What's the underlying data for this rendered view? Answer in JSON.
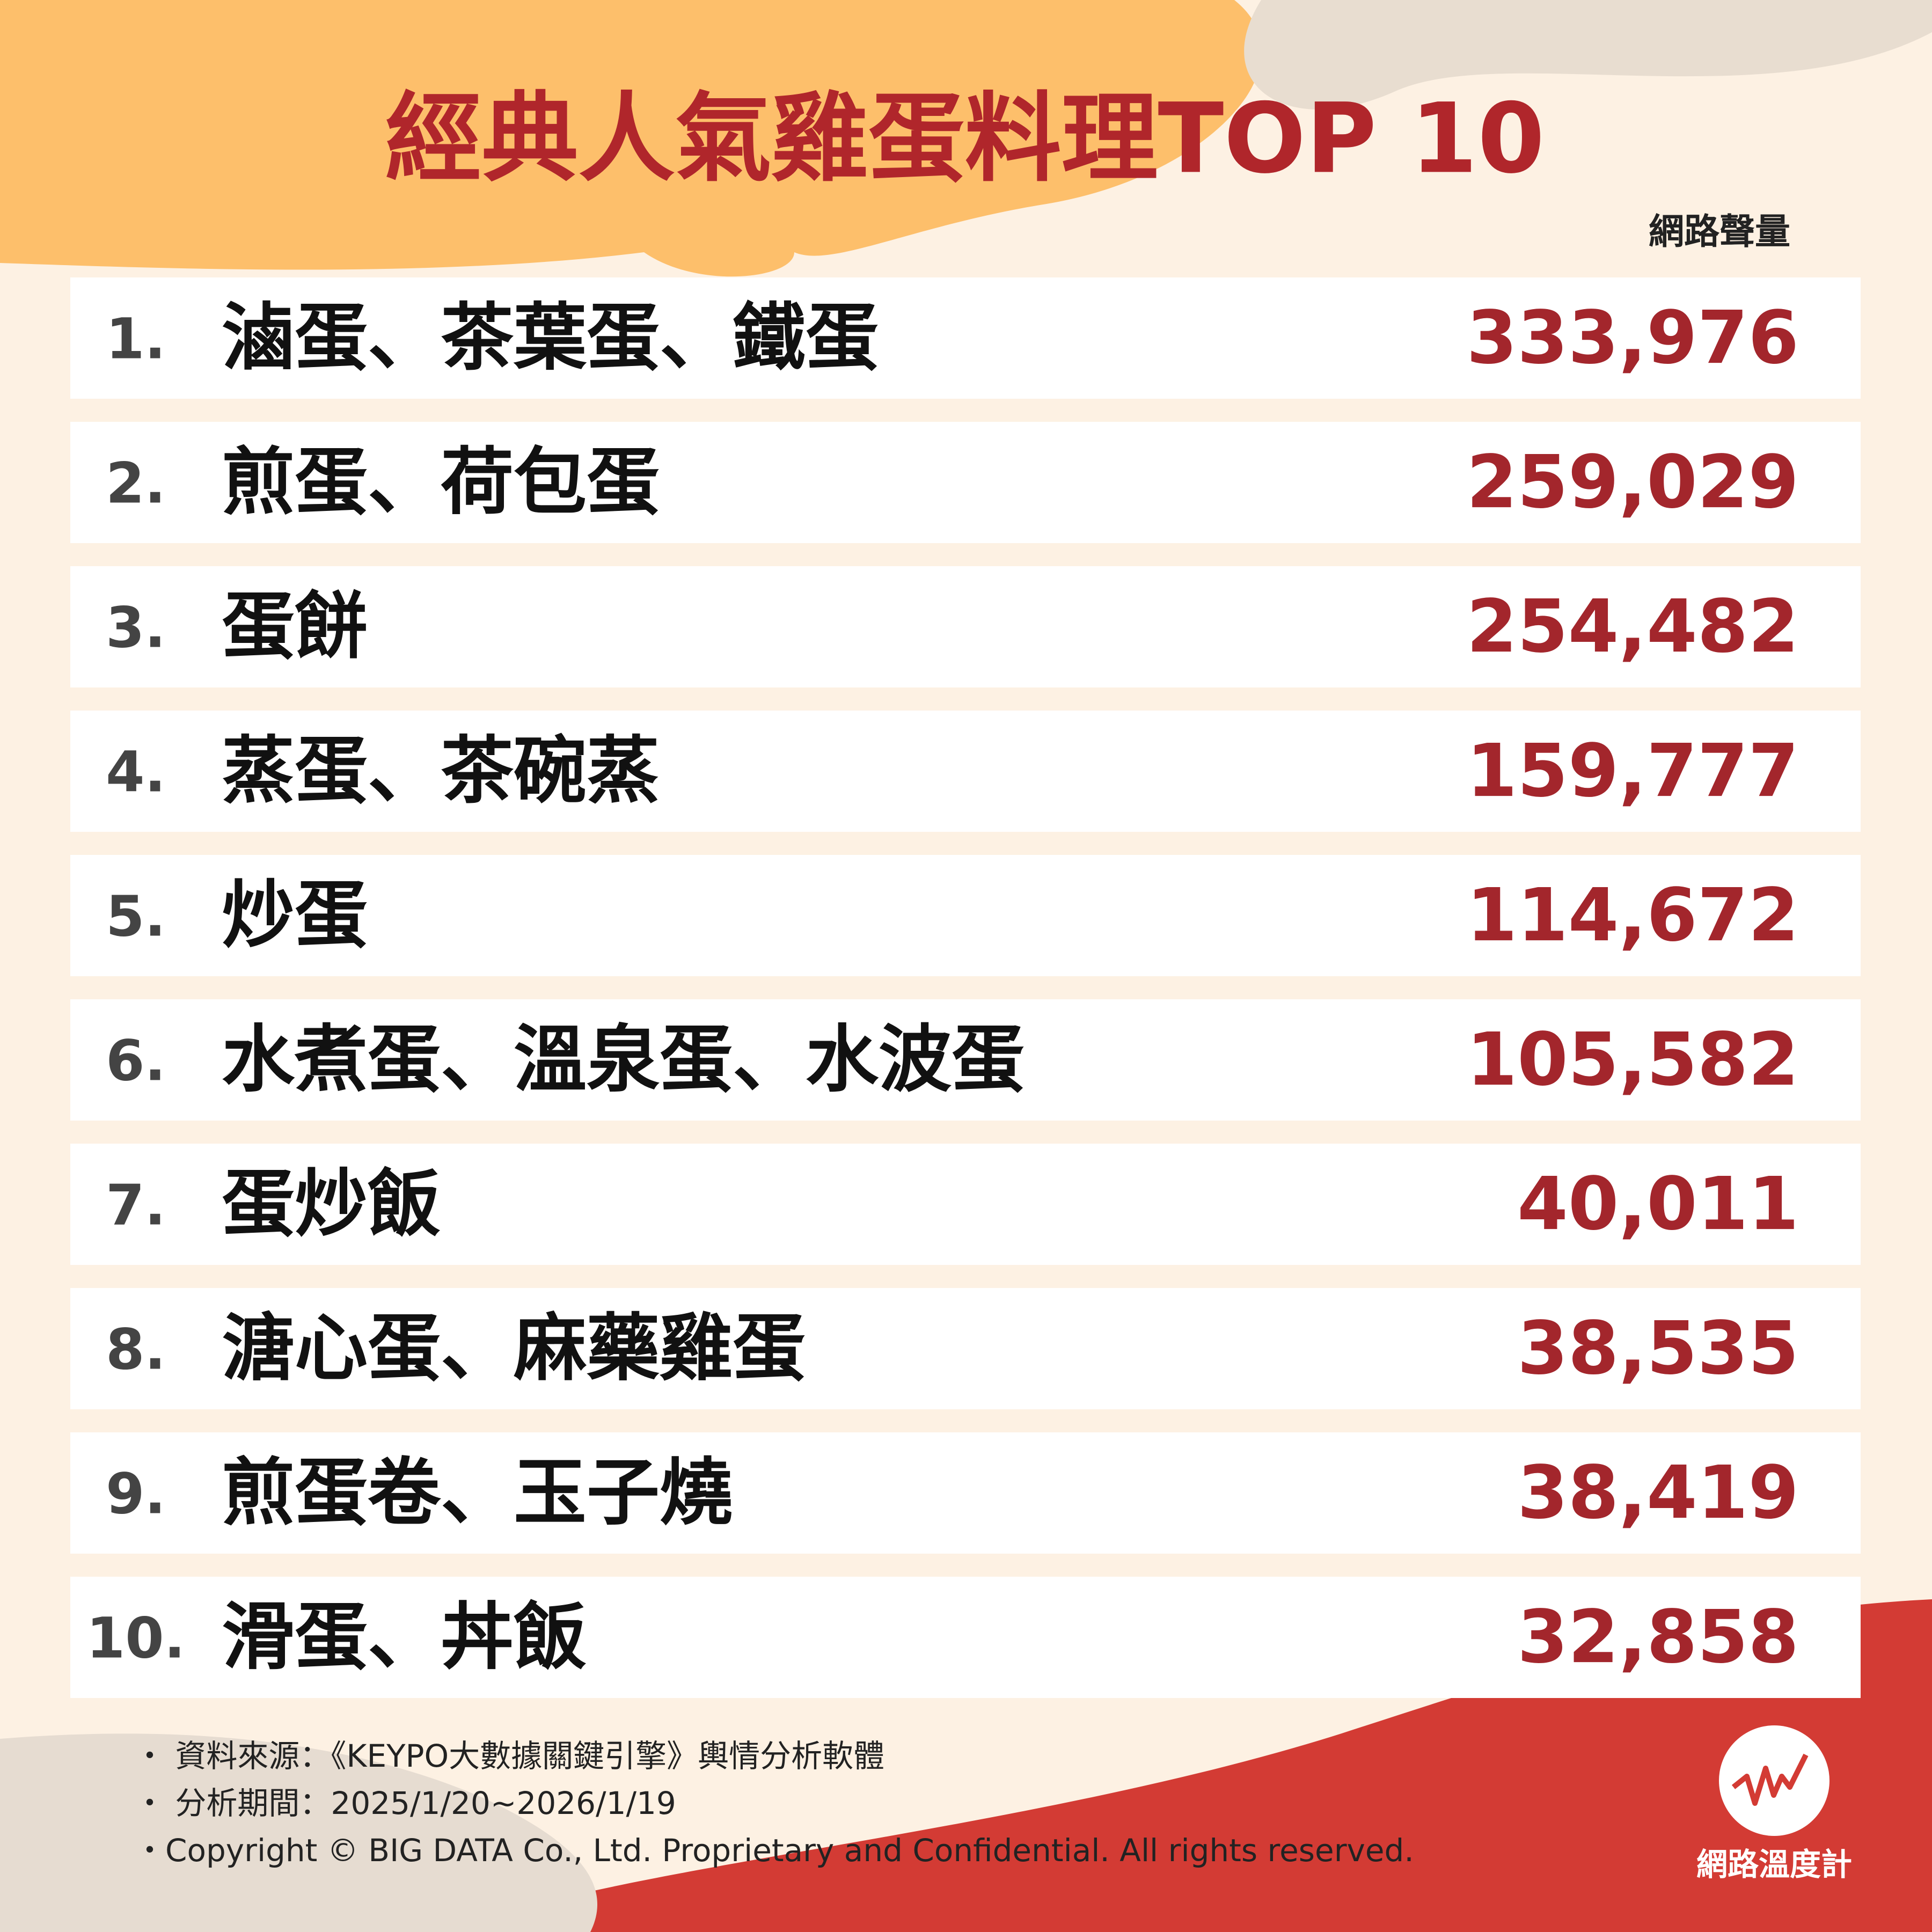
{
  "header": {
    "title": "經典人氣雞蛋料理TOP 10",
    "column_label": "網路聲量"
  },
  "table": {
    "rows": [
      [
        "1.",
        "滷蛋、茶葉蛋、鐵蛋",
        "333,976"
      ],
      [
        "2.",
        "煎蛋、荷包蛋",
        "259,029"
      ],
      [
        "3.",
        "蛋餅",
        "254,482"
      ],
      [
        "4.",
        "蒸蛋、茶碗蒸",
        "159,777"
      ],
      [
        "5.",
        "炒蛋",
        "114,672"
      ],
      [
        "6.",
        "水煮蛋、溫泉蛋、水波蛋",
        "105,582"
      ],
      [
        "7.",
        "蛋炒飯",
        "40,011"
      ],
      [
        "8.",
        "溏心蛋、麻藥雞蛋",
        "38,535"
      ],
      [
        "9.",
        "煎蛋卷、玉子燒",
        "38,419"
      ],
      [
        "10.",
        "滑蛋、丼飯",
        "32,858"
      ]
    ]
  },
  "footer": {
    "notes": [
      "・ 資料來源：《KEYPO大數據關鍵引擎》輿情分析軟體",
      "・ 分析期間：2025/1/20~2026/1/19",
      "・Copyright © BIG DATA Co., Ltd. Proprietary and Confidential. All rights reserved."
    ],
    "logo": "網路溫度計"
  }
}
